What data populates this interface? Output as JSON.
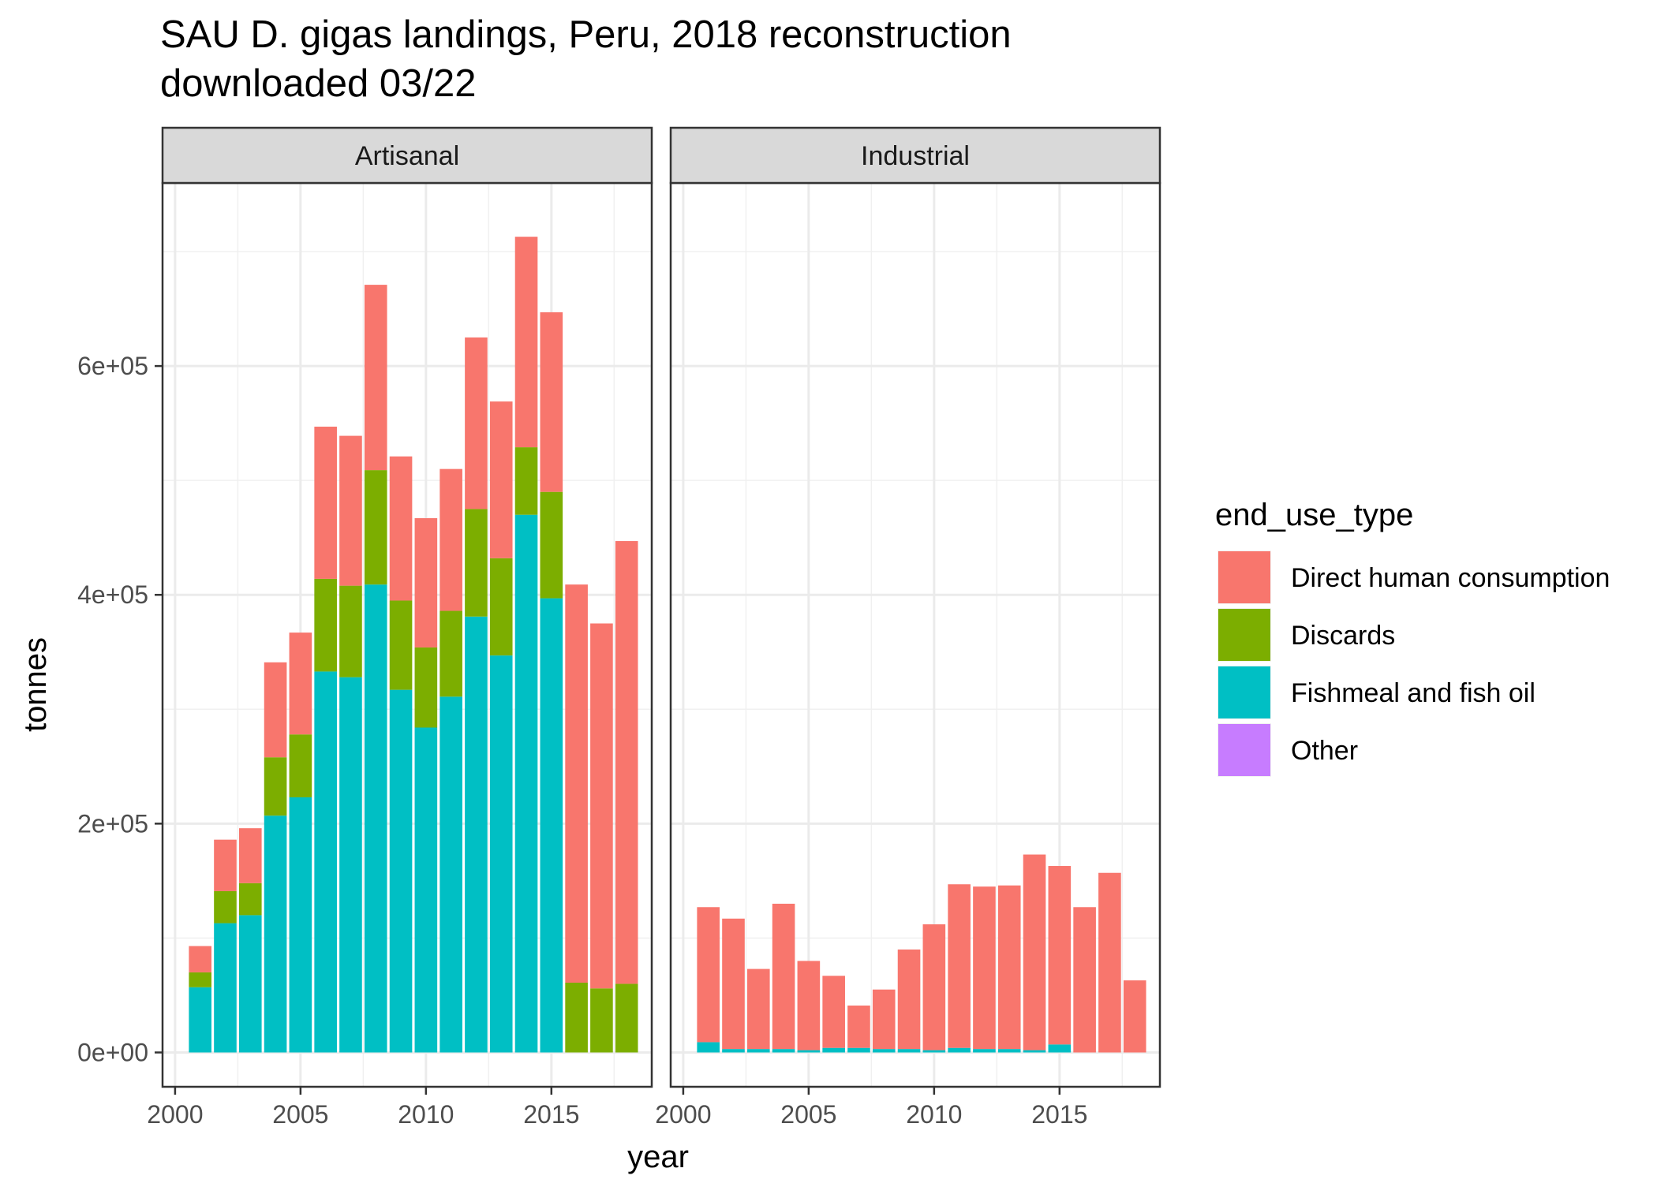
{
  "chart_data": {
    "type": "bar",
    "stacked": true,
    "title": "SAU D. gigas landings, Peru, 2018 reconstruction",
    "subtitle": "downloaded 03/22",
    "xlabel": "year",
    "ylabel": "tonnes",
    "ylim": [
      -30000,
      760000
    ],
    "xlim": [
      1999.5,
      2019
    ],
    "x_ticks": [
      2000,
      2005,
      2010,
      2015
    ],
    "y_ticks": [
      0,
      200000,
      400000,
      600000
    ],
    "y_tick_labels": [
      "0e+00",
      "2e+05",
      "4e+05",
      "6e+05"
    ],
    "grid": true,
    "legend": {
      "title": "end_use_type",
      "position": "right",
      "entries": [
        "Direct human consumption",
        "Discards",
        "Fishmeal and fish oil",
        "Other"
      ]
    },
    "colors": {
      "Direct human consumption": "#F8766D",
      "Discards": "#7CAE00",
      "Fishmeal and fish oil": "#00BFC4",
      "Other": "#C77CFF"
    },
    "categories": [
      2001,
      2002,
      2003,
      2004,
      2005,
      2006,
      2007,
      2008,
      2009,
      2010,
      2011,
      2012,
      2013,
      2014,
      2015,
      2016,
      2017,
      2018
    ],
    "panels": [
      {
        "name": "Artisanal",
        "series": [
          {
            "name": "Fishmeal and fish oil",
            "values": [
              57000,
              113000,
              120000,
              207000,
              223000,
              333000,
              328000,
              409000,
              317000,
              284000,
              311000,
              381000,
              347000,
              470000,
              397000,
              0,
              0,
              0
            ]
          },
          {
            "name": "Discards",
            "values": [
              13000,
              28000,
              28000,
              51000,
              55000,
              81000,
              80000,
              100000,
              78000,
              70000,
              75000,
              94000,
              85000,
              59000,
              93000,
              61000,
              56000,
              60000
            ]
          },
          {
            "name": "Direct human consumption",
            "values": [
              23000,
              45000,
              48000,
              83000,
              89000,
              133000,
              131000,
              162000,
              126000,
              113000,
              124000,
              150000,
              137000,
              184000,
              157000,
              348000,
              319000,
              387000
            ]
          },
          {
            "name": "Other",
            "values": [
              0,
              0,
              0,
              0,
              0,
              0,
              0,
              0,
              0,
              0,
              0,
              0,
              0,
              0,
              0,
              0,
              0,
              0
            ]
          }
        ]
      },
      {
        "name": "Industrial",
        "series": [
          {
            "name": "Fishmeal and fish oil",
            "values": [
              9000,
              3000,
              3000,
              3000,
              2000,
              4000,
              4000,
              3000,
              3000,
              2000,
              4000,
              3000,
              3000,
              2000,
              7000,
              0,
              0,
              0
            ]
          },
          {
            "name": "Discards",
            "values": [
              0,
              0,
              0,
              0,
              0,
              0,
              0,
              0,
              0,
              0,
              0,
              0,
              0,
              0,
              0,
              0,
              0,
              0
            ]
          },
          {
            "name": "Direct human consumption",
            "values": [
              118000,
              114000,
              70000,
              127000,
              78000,
              63000,
              37000,
              52000,
              87000,
              110000,
              143000,
              142000,
              143000,
              171000,
              156000,
              127000,
              157000,
              63000
            ]
          },
          {
            "name": "Other",
            "values": [
              0,
              0,
              0,
              0,
              0,
              0,
              0,
              0,
              0,
              0,
              0,
              0,
              0,
              0,
              0,
              0,
              0,
              0
            ]
          }
        ]
      }
    ]
  }
}
